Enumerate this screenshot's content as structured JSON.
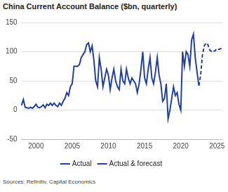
{
  "chart_data": {
    "type": "line",
    "title": "China Current Account Balance ($bn, quarterly)",
    "source": "Sources: Refinitiv, Capital Economics",
    "categories": [
      null,
      null,
      null,
      null,
      null,
      null,
      null,
      null,
      "2000",
      null,
      null,
      null,
      null,
      null,
      null,
      null,
      null,
      null,
      null,
      null,
      null,
      null,
      null,
      null,
      null,
      null,
      null,
      null,
      "2005",
      null,
      null,
      null,
      null,
      null,
      null,
      null,
      null,
      null,
      null,
      null,
      null,
      null,
      null,
      null,
      null,
      null,
      null,
      null,
      "2010",
      null,
      null,
      null,
      null,
      null,
      null,
      null,
      null,
      null,
      null,
      null,
      null,
      null,
      null,
      null,
      null,
      null,
      null,
      null,
      "2015",
      null,
      null,
      null,
      null,
      null,
      null,
      null,
      null,
      null,
      null,
      null,
      null,
      null,
      null,
      null,
      null,
      null,
      null,
      null,
      "2020",
      null,
      null,
      null,
      null,
      null,
      null,
      null,
      null,
      null,
      null,
      null,
      null,
      null,
      null,
      null,
      null,
      null,
      null,
      null,
      "2025",
      null,
      null,
      null
    ],
    "series": [
      {
        "name": "Actual",
        "color": "#2140a0",
        "line_style": "solid",
        "values": [
          8,
          18,
          5,
          4,
          3,
          5,
          3,
          6,
          10,
          5,
          4,
          6,
          9,
          4,
          10,
          8,
          12,
          8,
          12,
          8,
          6,
          12,
          8,
          15,
          20,
          30,
          25,
          40,
          45,
          75,
          75,
          75,
          78,
          90,
          95,
          100,
          112,
          115,
          100,
          110,
          85,
          50,
          40,
          90,
          70,
          40,
          55,
          70,
          60,
          35,
          55,
          70,
          50,
          40,
          35,
          70,
          50,
          45,
          70,
          55,
          45,
          55,
          50,
          45,
          30,
          45,
          70,
          100,
          55,
          45,
          70,
          90,
          55,
          45,
          65,
          90,
          60,
          45,
          15,
          20,
          45,
          -15,
          0,
          20,
          40,
          25,
          30,
          10,
          0,
          100,
          75,
          100,
          95,
          75,
          120,
          130,
          90,
          65,
          42,
          null,
          null,
          null,
          null,
          null,
          null,
          null,
          null,
          null,
          null,
          null,
          null,
          null
        ]
      },
      {
        "name": "Actual & forecast",
        "color": "#2140a0",
        "line_style": "dashed",
        "values": [
          null,
          null,
          null,
          null,
          null,
          null,
          null,
          null,
          null,
          null,
          null,
          null,
          null,
          null,
          null,
          null,
          null,
          null,
          null,
          null,
          null,
          null,
          null,
          null,
          null,
          null,
          null,
          null,
          null,
          null,
          null,
          null,
          null,
          null,
          null,
          null,
          null,
          null,
          null,
          null,
          null,
          null,
          null,
          null,
          null,
          null,
          null,
          null,
          null,
          null,
          null,
          null,
          null,
          null,
          null,
          null,
          null,
          null,
          null,
          null,
          null,
          null,
          null,
          null,
          null,
          null,
          null,
          null,
          null,
          null,
          null,
          null,
          null,
          null,
          null,
          null,
          null,
          null,
          null,
          null,
          null,
          null,
          null,
          null,
          null,
          null,
          null,
          null,
          null,
          null,
          null,
          null,
          null,
          null,
          null,
          null,
          null,
          null,
          42,
          60,
          95,
          110,
          115,
          112,
          103,
          100,
          100,
          102,
          105,
          104,
          105,
          105
        ]
      }
    ],
    "ylim": [
      -50,
      150
    ],
    "yticks": [
      -50,
      0,
      50,
      100,
      150
    ],
    "grid": true,
    "legend": "bottom"
  }
}
